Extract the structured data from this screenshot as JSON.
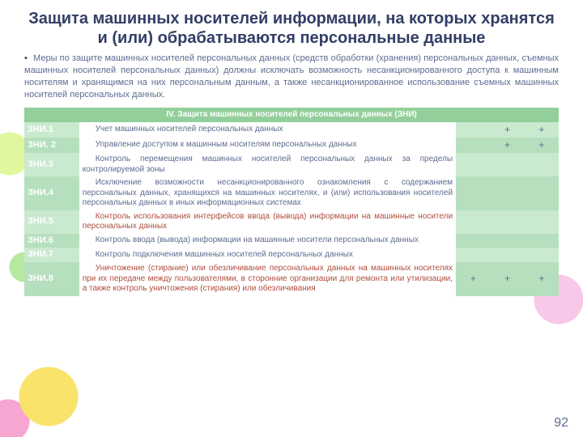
{
  "title": "Защита машинных носителей информации, на которых хранятся и (или) обрабатываются персональные данные",
  "intro": "Меры по защите машинных носителей персональных данных (средств обработки (хранения) персональных данных, съемных машинных носителей персональных данных) должны исключать возможность несанкционированного доступа к машинным носителям и хранящимся на них персональным данным, а также несанкционированное использование съемных машинных носителей персональных данных.",
  "sectionHeader": "IV. Защита машинных носителей персональных данных (ЗНИ)",
  "pageNumber": "92",
  "colors": {
    "rowA": "#caead0",
    "rowB": "#b6dfbd",
    "header": "#93cf9b"
  },
  "cols": {
    "code": 48,
    "desc": 330,
    "m1": 30,
    "m2": 30,
    "m3": 30
  },
  "rows": [
    {
      "code": "ЗНИ.1",
      "desc": "Учет машинных носителей персональных данных",
      "hl": false,
      "m": [
        "",
        "+",
        "+"
      ]
    },
    {
      "code": "ЗНИ. 2",
      "desc": "Управление доступом к машинным носителям персональных данных",
      "hl": false,
      "m": [
        "",
        "+",
        "+"
      ]
    },
    {
      "code": "ЗНИ.3",
      "desc": "Контроль перемещения машинных носителей персональных данных за пределы контролируемой зоны",
      "hl": false,
      "m": [
        "",
        "",
        ""
      ]
    },
    {
      "code": "ЗНИ.4",
      "desc": "Исключение возможности несанкционированного ознакомления с содержанием персональных данных, хранящихся на машинных носителях, и (или) использования носителей персональных данных в иных информационных системах",
      "hl": false,
      "m": [
        "",
        "",
        ""
      ]
    },
    {
      "code": "ЗНИ.5",
      "desc": "Контроль использования интерфейсов ввода (вывода) информации на машинные носители персональных данных",
      "hl": true,
      "m": [
        "",
        "",
        ""
      ]
    },
    {
      "code": "ЗНИ.6",
      "desc": "Контроль ввода (вывода) информации на машинные носители персональных данных",
      "hl": false,
      "m": [
        "",
        "",
        ""
      ]
    },
    {
      "code": "ЗНИ.7",
      "desc": "Контроль подключения машинных носителей персональных данных",
      "hl": false,
      "m": [
        "",
        "",
        ""
      ]
    },
    {
      "code": "ЗНИ.8",
      "desc": "Уничтожение (стирание) или обезличивание персональных данных на машинных носителях при их передаче между пользователями, в сторонние организации для ремонта или утилизации, а также контроль уничтожения (стирания) или обезличивания",
      "hl": true,
      "m": [
        "+",
        "+",
        "+"
      ]
    }
  ]
}
